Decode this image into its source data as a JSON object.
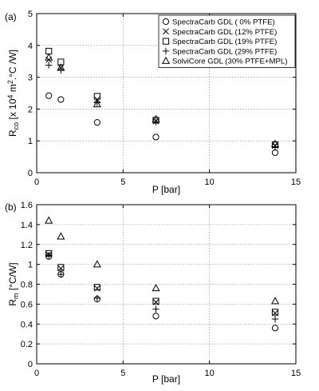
{
  "chart_data": [
    {
      "type": "scatter",
      "panel_label": "(a)",
      "xlabel": "P [bar]",
      "ylabel": {
        "main": "R",
        "sub": "co",
        "rest": " [x 10",
        "sup1": "4",
        "mid": " m",
        "sup2": "2",
        "end": ".°C /W]"
      },
      "xlim": [
        0,
        15
      ],
      "ylim": [
        0,
        5
      ],
      "x_ticks": [
        0,
        5,
        10,
        15
      ],
      "y_ticks": [
        0,
        1,
        2,
        3,
        4,
        5
      ],
      "grid": true,
      "legend_position": "top-right",
      "series": [
        {
          "name": "SpectraCarb GDL (  0% PTFE)",
          "marker": "circle",
          "points": [
            [
              0.7,
              2.42
            ],
            [
              1.4,
              2.3
            ],
            [
              3.5,
              1.58
            ],
            [
              6.9,
              1.12
            ],
            [
              13.8,
              0.63
            ]
          ]
        },
        {
          "name": "SpectraCarb GDL (12% PTFE)",
          "marker": "x",
          "points": [
            [
              0.7,
              3.55
            ],
            [
              1.4,
              3.3
            ],
            [
              3.5,
              2.3
            ],
            [
              6.9,
              1.62
            ],
            [
              13.8,
              0.85
            ]
          ]
        },
        {
          "name": "SpectraCarb GDL (19% PTFE)",
          "marker": "square",
          "points": [
            [
              0.7,
              3.82
            ],
            [
              1.4,
              3.48
            ],
            [
              3.5,
              2.4
            ],
            [
              6.9,
              1.65
            ],
            [
              13.8,
              0.88
            ]
          ]
        },
        {
          "name": "SpectraCarb GDL (29% PTFE)",
          "marker": "plus",
          "points": [
            [
              0.7,
              3.38
            ],
            [
              1.4,
              3.22
            ],
            [
              3.5,
              2.2
            ],
            [
              6.9,
              1.6
            ],
            [
              13.8,
              0.8
            ]
          ]
        },
        {
          "name": "SolviCore GDL (30% PTFE+MPL)",
          "marker": "triangle",
          "points": [
            [
              0.7,
              3.62
            ],
            [
              1.4,
              3.3
            ],
            [
              3.5,
              2.15
            ],
            [
              6.9,
              1.68
            ],
            [
              13.8,
              0.9
            ]
          ]
        }
      ]
    },
    {
      "type": "scatter",
      "panel_label": "(b)",
      "xlabel": "P [bar]",
      "ylabel": {
        "main": "R",
        "sub": "m",
        "rest": " [°C/W]"
      },
      "xlim": [
        0,
        15
      ],
      "ylim": [
        0,
        1.6
      ],
      "x_ticks": [
        0,
        5,
        10,
        15
      ],
      "y_ticks": [
        0,
        0.2,
        0.4,
        0.6,
        0.8,
        1.0,
        1.2,
        1.4,
        1.6
      ],
      "y_tick_labels": [
        "0",
        "0.2",
        "0.4",
        "0.6",
        "0.8",
        "1",
        "1.2",
        "1.4",
        "1.6"
      ],
      "grid": true,
      "series": [
        {
          "marker": "circle",
          "points": [
            [
              0.7,
              1.08
            ],
            [
              1.4,
              0.9
            ],
            [
              3.5,
              0.65
            ],
            [
              6.9,
              0.48
            ],
            [
              13.8,
              0.36
            ]
          ]
        },
        {
          "marker": "x",
          "points": [
            [
              0.7,
              1.1
            ],
            [
              1.4,
              0.96
            ],
            [
              3.5,
              0.76
            ],
            [
              6.9,
              0.62
            ],
            [
              13.8,
              0.51
            ]
          ]
        },
        {
          "marker": "square",
          "points": [
            [
              0.7,
              1.11
            ],
            [
              1.4,
              0.97
            ],
            [
              3.5,
              0.77
            ],
            [
              6.9,
              0.63
            ],
            [
              13.8,
              0.52
            ]
          ]
        },
        {
          "marker": "plus",
          "points": [
            [
              0.7,
              1.09
            ],
            [
              1.4,
              0.9
            ],
            [
              3.5,
              0.66
            ],
            [
              6.9,
              0.55
            ],
            [
              13.8,
              0.45
            ]
          ]
        },
        {
          "marker": "triangle",
          "points": [
            [
              0.7,
              1.44
            ],
            [
              1.4,
              1.28
            ],
            [
              3.5,
              1.0
            ],
            [
              6.9,
              0.76
            ],
            [
              13.8,
              0.63
            ]
          ]
        }
      ]
    }
  ]
}
